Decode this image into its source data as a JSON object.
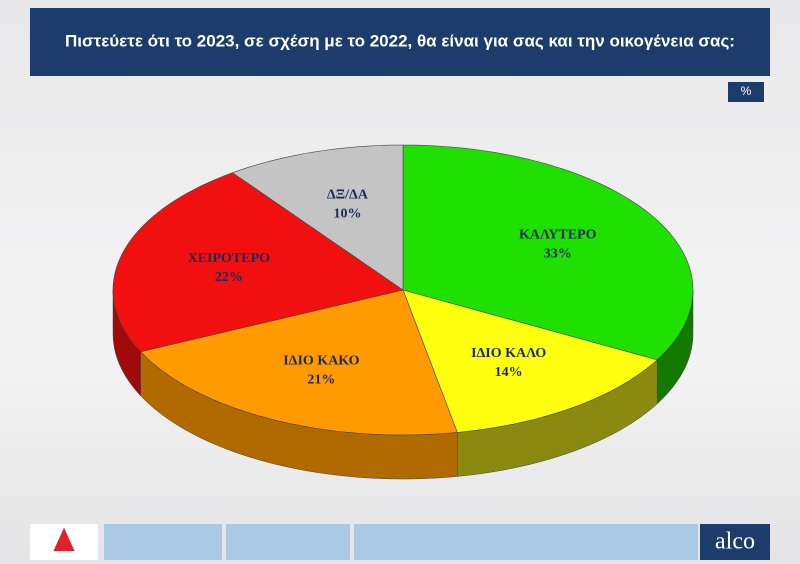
{
  "chart_data": {
    "type": "pie3d",
    "title": "Πιστεύετε ότι το 2023, σε σχέση με το 2022, θα είναι για σας και την οικογένεια σας:",
    "unit_label": "%",
    "categories": [
      "ΚΑΛΥΤΕΡΟ",
      "ΙΔΙΟ ΚΑΛΟ",
      "ΙΔΙΟ ΚΑΚΟ",
      "ΧΕΙΡΟΤΕΡΟ",
      "ΔΞ/ΔΑ"
    ],
    "values": [
      33,
      14,
      21,
      22,
      10
    ],
    "value_labels": [
      "33%",
      "14%",
      "21%",
      "22%",
      "10%"
    ],
    "colors": [
      "#1fe000",
      "#ffff10",
      "#ff9a00",
      "#f01010",
      "#c4c4c4"
    ],
    "side_colors": [
      "#127a00",
      "#8a8a10",
      "#b06a00",
      "#a00a0a",
      "#888888"
    ]
  },
  "footer": {
    "brand": "alco"
  }
}
